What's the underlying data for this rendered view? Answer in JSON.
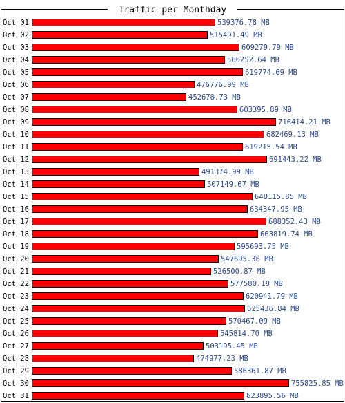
{
  "chart_data": {
    "type": "bar",
    "orientation": "horizontal",
    "title": "Traffic per Monthday",
    "unit": "MB",
    "categories": [
      "Oct 01",
      "Oct 02",
      "Oct 03",
      "Oct 04",
      "Oct 05",
      "Oct 06",
      "Oct 07",
      "Oct 08",
      "Oct 09",
      "Oct 10",
      "Oct 11",
      "Oct 12",
      "Oct 13",
      "Oct 14",
      "Oct 15",
      "Oct 16",
      "Oct 17",
      "Oct 18",
      "Oct 19",
      "Oct 20",
      "Oct 21",
      "Oct 22",
      "Oct 23",
      "Oct 24",
      "Oct 25",
      "Oct 26",
      "Oct 27",
      "Oct 28",
      "Oct 29",
      "Oct 30",
      "Oct 31"
    ],
    "values": [
      539376.78,
      515491.49,
      609279.79,
      566252.64,
      619774.69,
      476776.99,
      452678.73,
      603395.89,
      716414.21,
      682469.13,
      619215.54,
      691443.22,
      491374.99,
      507149.67,
      648115.85,
      634347.95,
      688352.43,
      663819.74,
      595693.75,
      547695.36,
      526500.87,
      577580.18,
      620941.79,
      625436.84,
      570467.09,
      545814.7,
      503195.45,
      474977.23,
      586361.87,
      755825.85,
      623895.56
    ],
    "value_labels": [
      "539376.78 MB",
      "515491.49 MB",
      "609279.79 MB",
      "566252.64 MB",
      "619774.69 MB",
      "476776.99 MB",
      "452678.73 MB",
      "603395.89 MB",
      "716414.21 MB",
      "682469.13 MB",
      "619215.54 MB",
      "691443.22 MB",
      "491374.99 MB",
      "507149.67 MB",
      "648115.85 MB",
      "634347.95 MB",
      "688352.43 MB",
      "663819.74 MB",
      "595693.75 MB",
      "547695.36 MB",
      "526500.87 MB",
      "577580.18 MB",
      "620941.79 MB",
      "625436.84 MB",
      "570467.09 MB",
      "545814.70 MB",
      "503195.45 MB",
      "474977.23 MB",
      "586361.87 MB",
      "755825.85 MB",
      "623895.56 MB"
    ],
    "grid": false,
    "legend": "none"
  },
  "colors": {
    "bar_fill": "#ff0000",
    "bar_stroke": "#000000",
    "value_text": "#2b4a8a",
    "frame": "#000000"
  }
}
